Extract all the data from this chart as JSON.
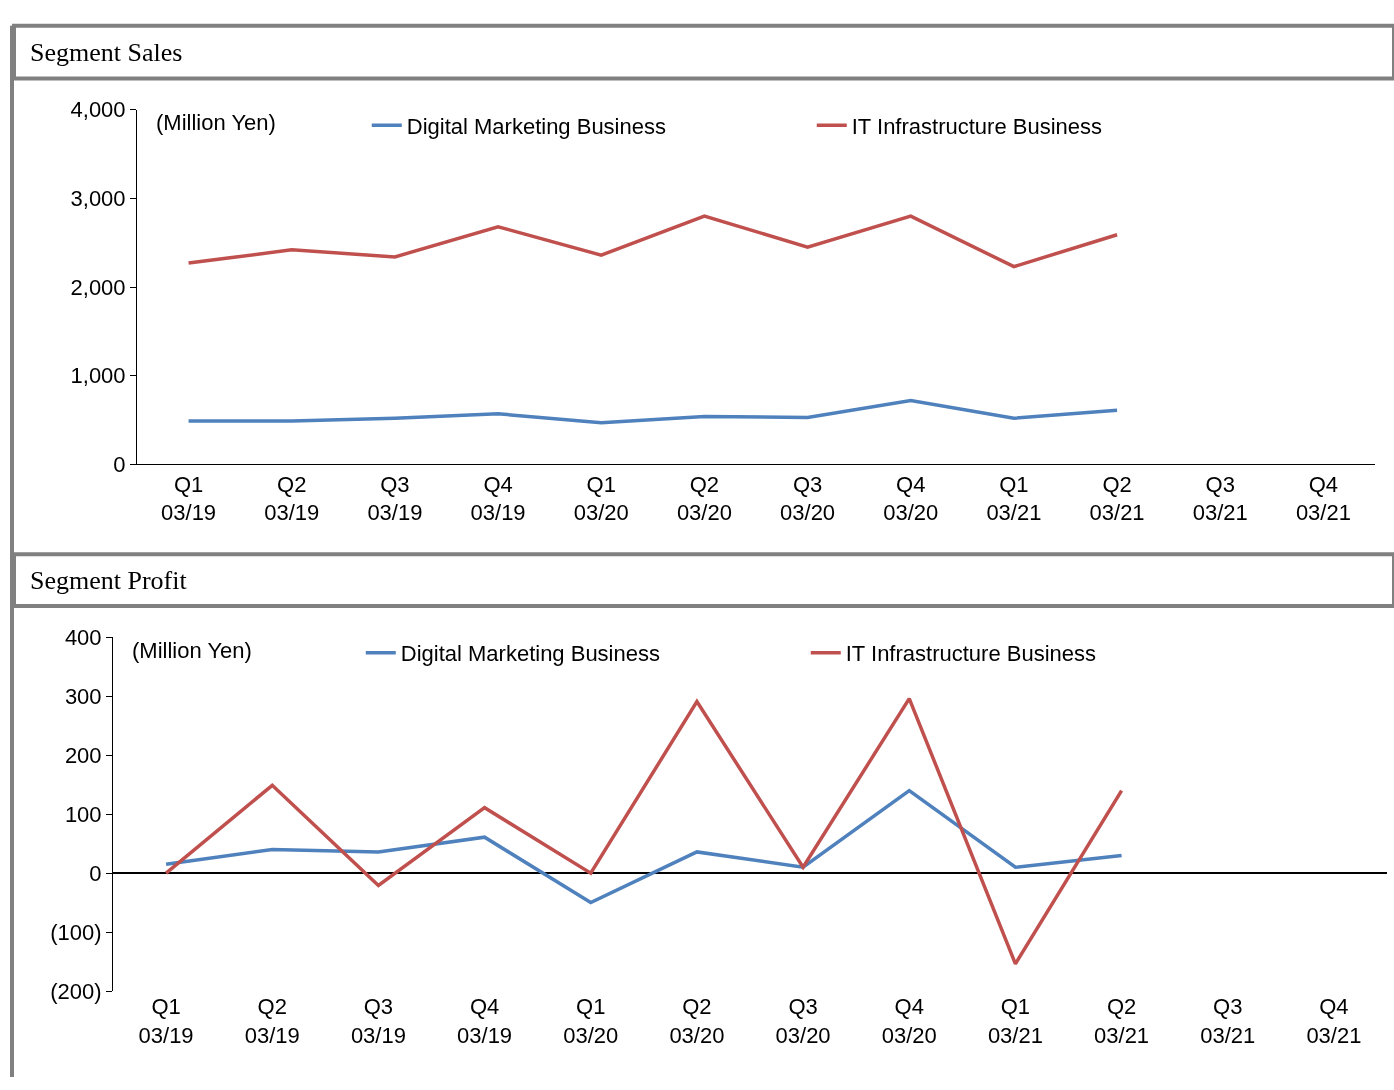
{
  "chart_data": [
    {
      "type": "line",
      "title": "Segment Sales",
      "annotations": [
        "(Million Yen)"
      ],
      "categories": [
        "Q1\n03/19",
        "Q2\n03/19",
        "Q3\n03/19",
        "Q4\n03/19",
        "Q1\n03/20",
        "Q2\n03/20",
        "Q3\n03/20",
        "Q4\n03/20",
        "Q1\n03/21",
        "Q2\n03/21",
        "Q3\n03/21",
        "Q4\n03/21"
      ],
      "series": [
        {
          "name": "Digital Marketing Business",
          "color": "#4f81bd",
          "values": [
            490,
            490,
            520,
            570,
            470,
            540,
            530,
            720,
            520,
            610,
            null,
            null
          ]
        },
        {
          "name": "IT Infrastructure Business",
          "color": "#c0504d",
          "values": [
            2270,
            2420,
            2340,
            2680,
            2360,
            2800,
            2450,
            2800,
            2230,
            2590,
            null,
            null
          ]
        }
      ],
      "ylim": [
        0,
        4000
      ],
      "yticks": [
        0,
        {
          "value": 1000,
          "label": "1,000"
        },
        {
          "value": 2000,
          "label": "2,000"
        },
        {
          "value": 3000,
          "label": "3,000"
        },
        {
          "value": 4000,
          "label": "4,000"
        }
      ],
      "legend": "top",
      "marker": "none",
      "line_style": "solid"
    },
    {
      "type": "line",
      "title": "Segment Profit",
      "annotations": [
        "(Million Yen)"
      ],
      "categories": [
        "Q1\n03/19",
        "Q2\n03/19",
        "Q3\n03/19",
        "Q4\n03/19",
        "Q1\n03/20",
        "Q2\n03/20",
        "Q3\n03/20",
        "Q4\n03/20",
        "Q1\n03/21",
        "Q2\n03/21",
        "Q3\n03/21",
        "Q4\n03/21"
      ],
      "series": [
        {
          "name": "Digital Marketing Business",
          "color": "#4f81bd",
          "values": [
            15,
            40,
            36,
            61,
            -50,
            36,
            10,
            140,
            10,
            30,
            null,
            null
          ]
        },
        {
          "name": "IT Infrastructure Business",
          "color": "#c0504d",
          "values": [
            0,
            149,
            -21,
            111,
            0,
            291,
            10,
            296,
            -154,
            140,
            null,
            null
          ]
        }
      ],
      "ylim": [
        -200,
        400
      ],
      "yticks": [
        {
          "value": -200,
          "label": "(200)"
        },
        {
          "value": -100,
          "label": "(100)"
        },
        0,
        100,
        200,
        300,
        400
      ],
      "legend": "top",
      "marker": "none",
      "line_style": "solid"
    }
  ]
}
